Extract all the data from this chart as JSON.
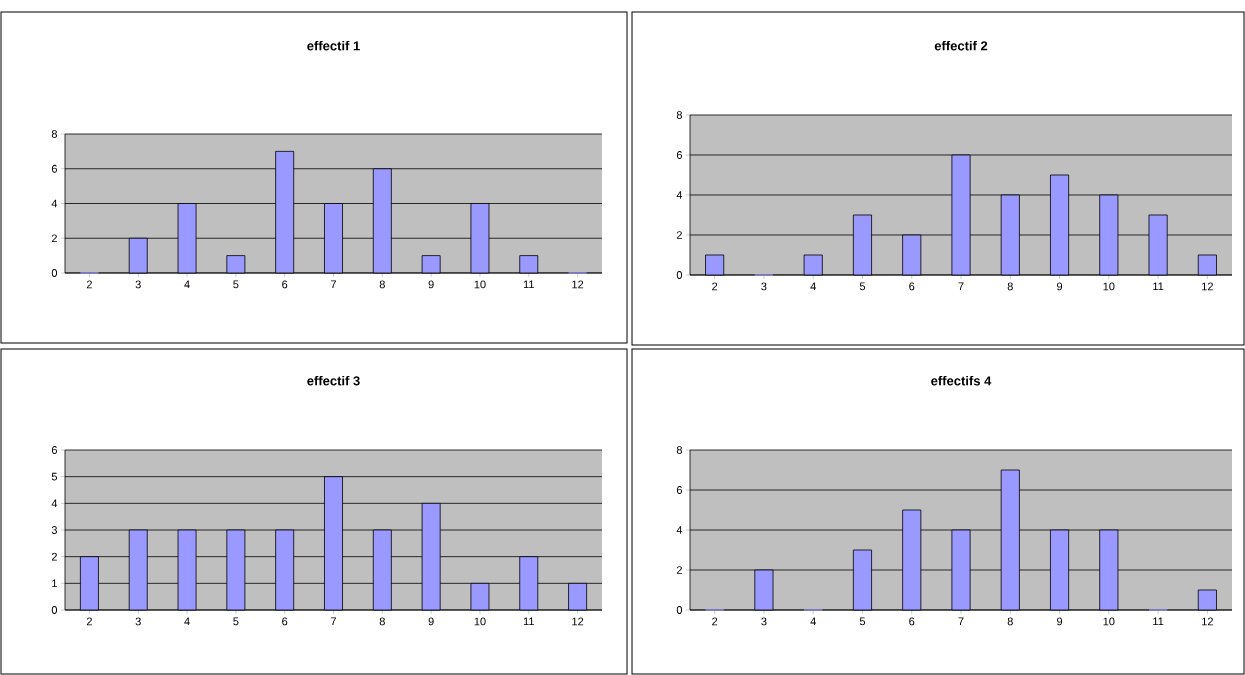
{
  "chart_data": [
    {
      "type": "bar",
      "title": "effectif 1",
      "categories": [
        "2",
        "3",
        "4",
        "5",
        "6",
        "7",
        "8",
        "9",
        "10",
        "11",
        "12"
      ],
      "values": [
        0,
        2,
        4,
        1,
        7,
        4,
        6,
        1,
        4,
        1,
        0
      ],
      "color": "#9999ff",
      "ylim": [
        0,
        8
      ],
      "yticks": [
        0,
        2,
        4,
        6,
        8
      ],
      "grid": "y"
    },
    {
      "type": "bar",
      "title": "effectif 2",
      "categories": [
        "2",
        "3",
        "4",
        "5",
        "6",
        "7",
        "8",
        "9",
        "10",
        "11",
        "12"
      ],
      "values": [
        1,
        0,
        1,
        3,
        2,
        6,
        4,
        5,
        4,
        3,
        1
      ],
      "color": "#9999ff",
      "ylim": [
        0,
        8
      ],
      "yticks": [
        0,
        2,
        4,
        6,
        8
      ],
      "grid": "y"
    },
    {
      "type": "bar",
      "title": "effectif 3",
      "categories": [
        "2",
        "3",
        "4",
        "5",
        "6",
        "7",
        "8",
        "9",
        "10",
        "11",
        "12"
      ],
      "values": [
        2,
        3,
        3,
        3,
        3,
        5,
        3,
        4,
        1,
        2,
        1
      ],
      "color": "#9999ff",
      "ylim": [
        0,
        6
      ],
      "yticks": [
        0,
        1,
        2,
        3,
        4,
        5,
        6
      ],
      "grid": "y"
    },
    {
      "type": "bar",
      "title": "effectifs 4",
      "categories": [
        "2",
        "3",
        "4",
        "5",
        "6",
        "7",
        "8",
        "9",
        "10",
        "11",
        "12"
      ],
      "values": [
        0,
        2,
        0,
        3,
        5,
        4,
        7,
        4,
        4,
        0,
        1
      ],
      "color": "#9999ff",
      "ylim": [
        0,
        8
      ],
      "yticks": [
        0,
        2,
        4,
        6,
        8
      ],
      "grid": "y"
    }
  ]
}
